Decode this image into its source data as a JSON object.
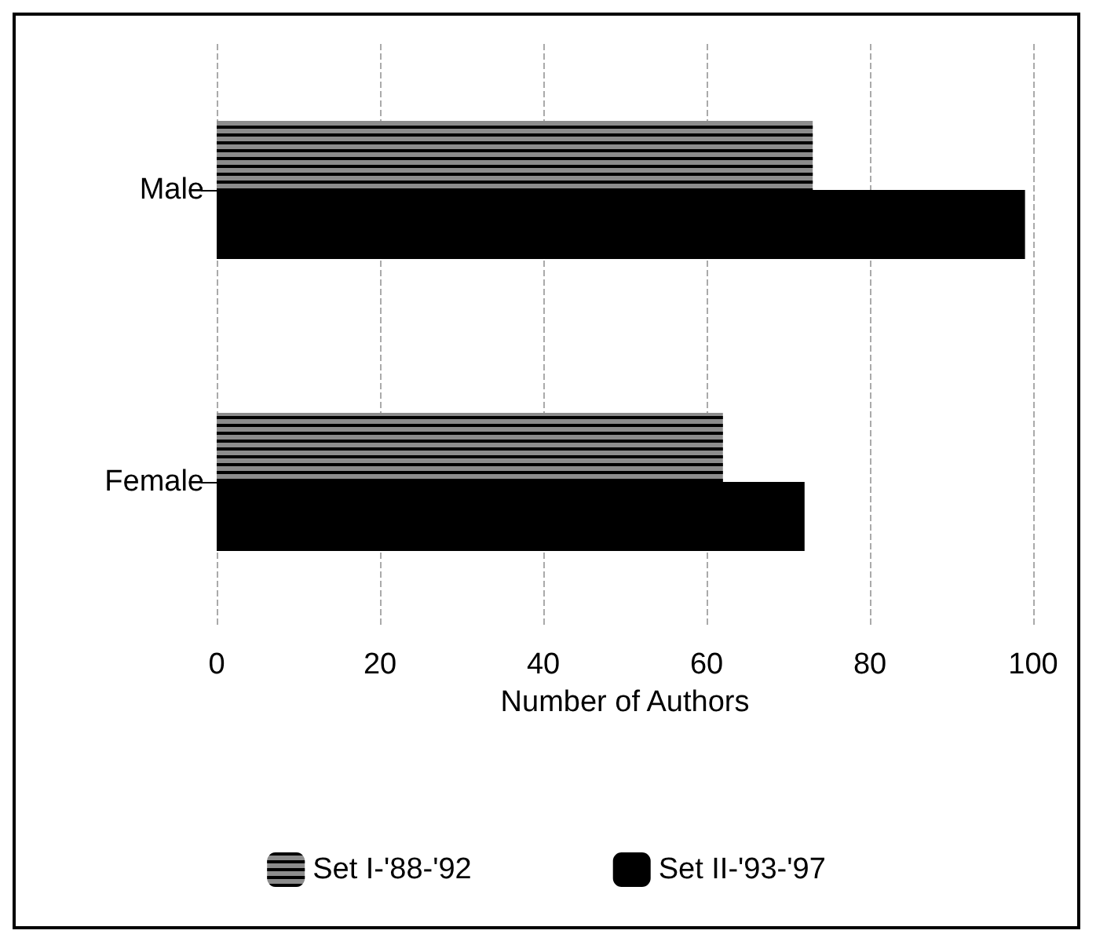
{
  "chart_data": {
    "type": "bar",
    "orientation": "horizontal",
    "categories": [
      "Male",
      "Female"
    ],
    "series": [
      {
        "name": "Set I-'88-'92",
        "color": "#8c8c8c",
        "values": [
          73,
          62
        ]
      },
      {
        "name": "Set II-'93-'97",
        "color": "#000000",
        "values": [
          99,
          72
        ]
      }
    ],
    "xlabel": "Number of Authors",
    "xlim": [
      0,
      100
    ],
    "xticks": [
      0,
      20,
      40,
      60,
      80,
      100
    ],
    "grid": "x",
    "legend": "bottom"
  }
}
